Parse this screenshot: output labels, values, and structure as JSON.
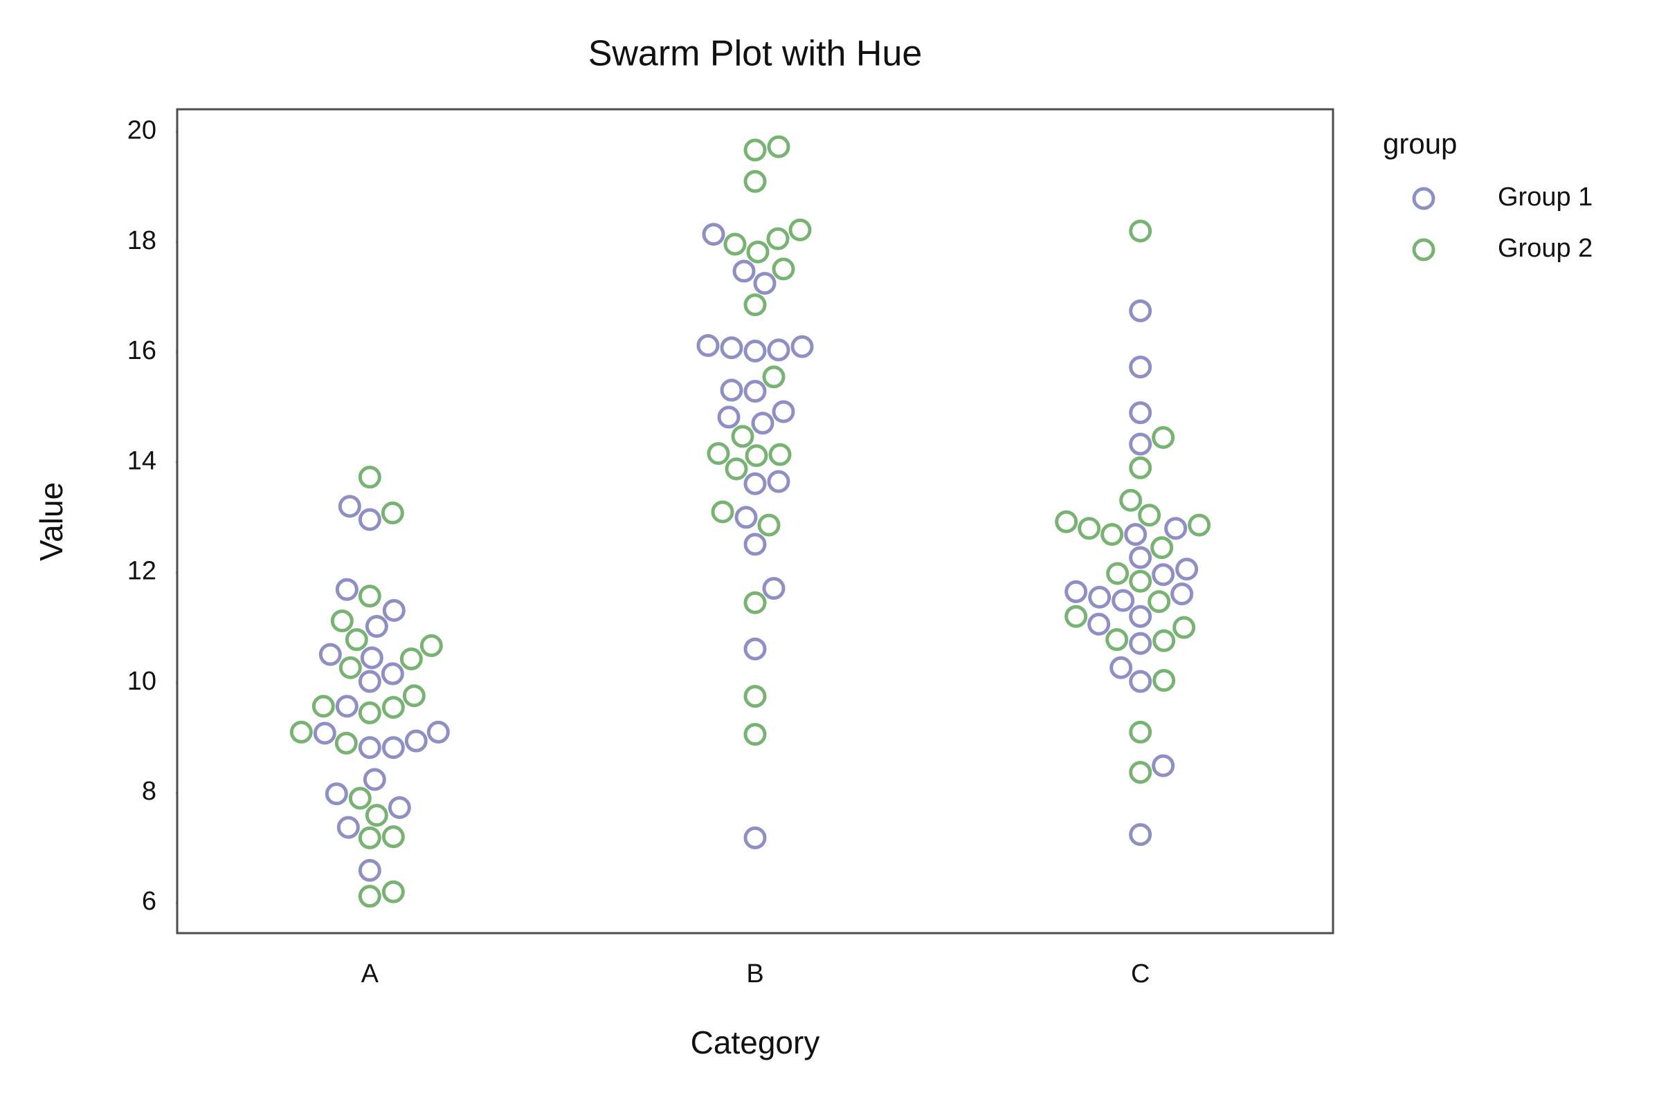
{
  "chart_data": {
    "type": "swarm",
    "title": "Swarm Plot with Hue",
    "x_label": "Category",
    "y_label": "Value",
    "categories": [
      "A",
      "B",
      "C"
    ],
    "legend_title": "group",
    "legend_position": "outside right",
    "ylim": [
      5.45,
      20.41
    ],
    "yticks": [
      6,
      8,
      10,
      12,
      14,
      16,
      18,
      20
    ],
    "series": [
      {
        "name": "Group 1",
        "color": "#8f8fc4",
        "x": [
          "A",
          "A",
          "A",
          "A",
          "A",
          "A",
          "A",
          "A",
          "A",
          "A",
          "A",
          "A",
          "A",
          "A",
          "A",
          "A",
          "A",
          "A",
          "A",
          "A",
          "B",
          "B",
          "B",
          "B",
          "B",
          "B",
          "B",
          "B",
          "B",
          "B",
          "B",
          "B",
          "B",
          "B",
          "B",
          "B",
          "B",
          "B",
          "B",
          "B",
          "C",
          "C",
          "C",
          "C",
          "C",
          "C",
          "C",
          "C",
          "C",
          "C",
          "C",
          "C",
          "C",
          "C",
          "C",
          "C",
          "C",
          "C",
          "C",
          "C"
        ],
        "values": [
          13.2,
          12.96,
          11.69,
          11.31,
          11.02,
          10.51,
          10.45,
          10.16,
          10.02,
          9.57,
          9.1,
          9.08,
          8.94,
          8.82,
          8.82,
          8.24,
          7.98,
          7.73,
          7.37,
          6.59,
          18.14,
          17.47,
          17.25,
          16.12,
          16.1,
          16.08,
          16.02,
          16.04,
          15.31,
          15.29,
          14.92,
          14.82,
          14.71,
          13.65,
          13.61,
          13.0,
          12.51,
          11.71,
          10.61,
          7.18,
          16.75,
          15.73,
          14.9,
          14.33,
          12.8,
          12.69,
          12.27,
          12.06,
          11.96,
          11.65,
          11.61,
          11.55,
          11.49,
          11.2,
          11.06,
          10.71,
          10.27,
          10.02,
          8.49,
          7.24
        ]
      },
      {
        "name": "Group 2",
        "color": "#78b373",
        "x": [
          "A",
          "A",
          "A",
          "A",
          "A",
          "A",
          "A",
          "A",
          "A",
          "A",
          "A",
          "A",
          "A",
          "A",
          "A",
          "A",
          "A",
          "A",
          "A",
          "A",
          "B",
          "B",
          "B",
          "B",
          "B",
          "B",
          "B",
          "B",
          "B",
          "B",
          "B",
          "B",
          "B",
          "B",
          "B",
          "B",
          "B",
          "B",
          "B",
          "B",
          "C",
          "C",
          "C",
          "C",
          "C",
          "C",
          "C",
          "C",
          "C",
          "C",
          "C",
          "C",
          "C",
          "C",
          "C",
          "C",
          "C",
          "C",
          "C",
          "C"
        ],
        "values": [
          13.73,
          13.08,
          11.57,
          11.12,
          10.67,
          10.78,
          10.27,
          10.43,
          9.76,
          9.57,
          9.55,
          9.45,
          9.1,
          8.9,
          7.9,
          7.59,
          7.2,
          7.18,
          6.2,
          6.12,
          19.73,
          19.67,
          19.1,
          18.22,
          18.06,
          17.82,
          17.96,
          17.51,
          16.86,
          15.55,
          14.47,
          14.16,
          14.12,
          14.14,
          13.88,
          13.1,
          12.86,
          11.45,
          9.75,
          9.06,
          18.2,
          14.45,
          13.9,
          13.31,
          13.04,
          12.92,
          12.86,
          12.8,
          12.69,
          12.45,
          11.98,
          11.84,
          11.47,
          11.2,
          11.0,
          10.78,
          10.76,
          10.04,
          9.1,
          8.37
        ]
      }
    ]
  }
}
